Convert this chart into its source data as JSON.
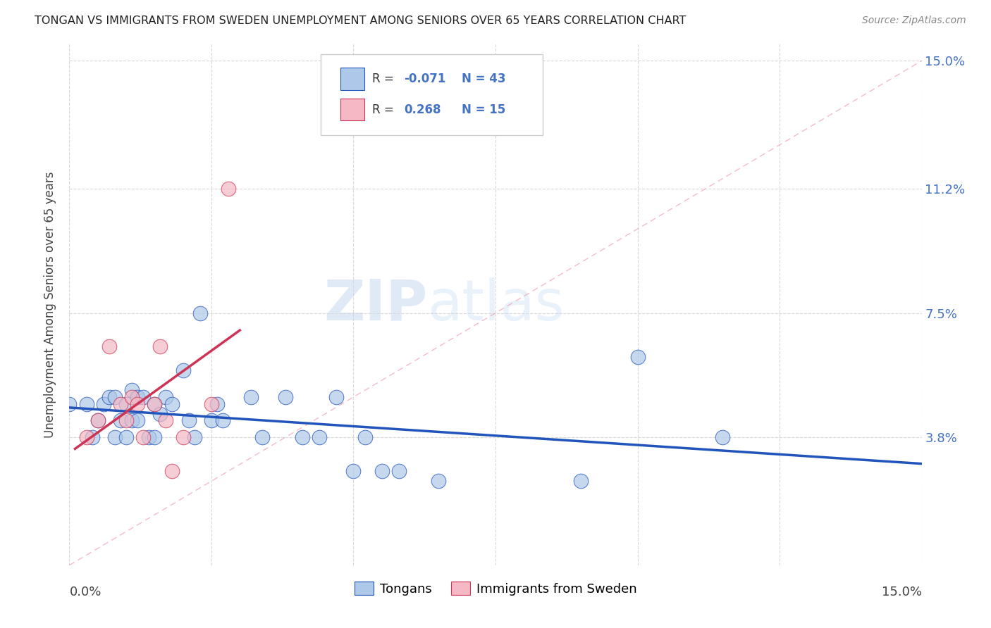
{
  "title": "TONGAN VS IMMIGRANTS FROM SWEDEN UNEMPLOYMENT AMONG SENIORS OVER 65 YEARS CORRELATION CHART",
  "source": "Source: ZipAtlas.com",
  "ylabel": "Unemployment Among Seniors over 65 years",
  "xlim": [
    0.0,
    0.15
  ],
  "ylim": [
    0.0,
    0.155
  ],
  "ytick_labels": [
    "3.8%",
    "7.5%",
    "11.2%",
    "15.0%"
  ],
  "ytick_values": [
    0.038,
    0.075,
    0.112,
    0.15
  ],
  "xtick_values": [
    0.0,
    0.025,
    0.05,
    0.075,
    0.1,
    0.125,
    0.15
  ],
  "legend_label1": "Tongans",
  "legend_label2": "Immigrants from Sweden",
  "R1": -0.071,
  "N1": 43,
  "R2": 0.268,
  "N2": 15,
  "color_blue": "#adc8e8",
  "color_pink": "#f5b8c4",
  "line_color_blue": "#2255bb",
  "line_color_pink": "#cc3355",
  "watermark_zip": "ZIP",
  "watermark_atlas": "atlas",
  "background_color": "#ffffff",
  "grid_color": "#d8d8d8",
  "tongans_x": [
    0.0,
    0.003,
    0.004,
    0.005,
    0.006,
    0.007,
    0.008,
    0.008,
    0.009,
    0.01,
    0.01,
    0.011,
    0.011,
    0.012,
    0.012,
    0.013,
    0.014,
    0.015,
    0.015,
    0.016,
    0.017,
    0.018,
    0.02,
    0.021,
    0.022,
    0.023,
    0.025,
    0.026,
    0.027,
    0.032,
    0.034,
    0.038,
    0.041,
    0.044,
    0.047,
    0.05,
    0.052,
    0.055,
    0.058,
    0.065,
    0.09,
    0.1,
    0.115
  ],
  "tongans_y": [
    0.048,
    0.048,
    0.038,
    0.043,
    0.048,
    0.05,
    0.05,
    0.038,
    0.043,
    0.048,
    0.038,
    0.052,
    0.043,
    0.05,
    0.043,
    0.05,
    0.038,
    0.048,
    0.038,
    0.045,
    0.05,
    0.048,
    0.058,
    0.043,
    0.038,
    0.075,
    0.043,
    0.048,
    0.043,
    0.05,
    0.038,
    0.05,
    0.038,
    0.038,
    0.05,
    0.028,
    0.038,
    0.028,
    0.028,
    0.025,
    0.025,
    0.062,
    0.038
  ],
  "sweden_x": [
    0.003,
    0.005,
    0.007,
    0.009,
    0.01,
    0.011,
    0.012,
    0.013,
    0.015,
    0.016,
    0.017,
    0.018,
    0.02,
    0.025,
    0.028
  ],
  "sweden_y": [
    0.038,
    0.043,
    0.065,
    0.048,
    0.043,
    0.05,
    0.048,
    0.038,
    0.048,
    0.065,
    0.043,
    0.028,
    0.038,
    0.048,
    0.112
  ]
}
